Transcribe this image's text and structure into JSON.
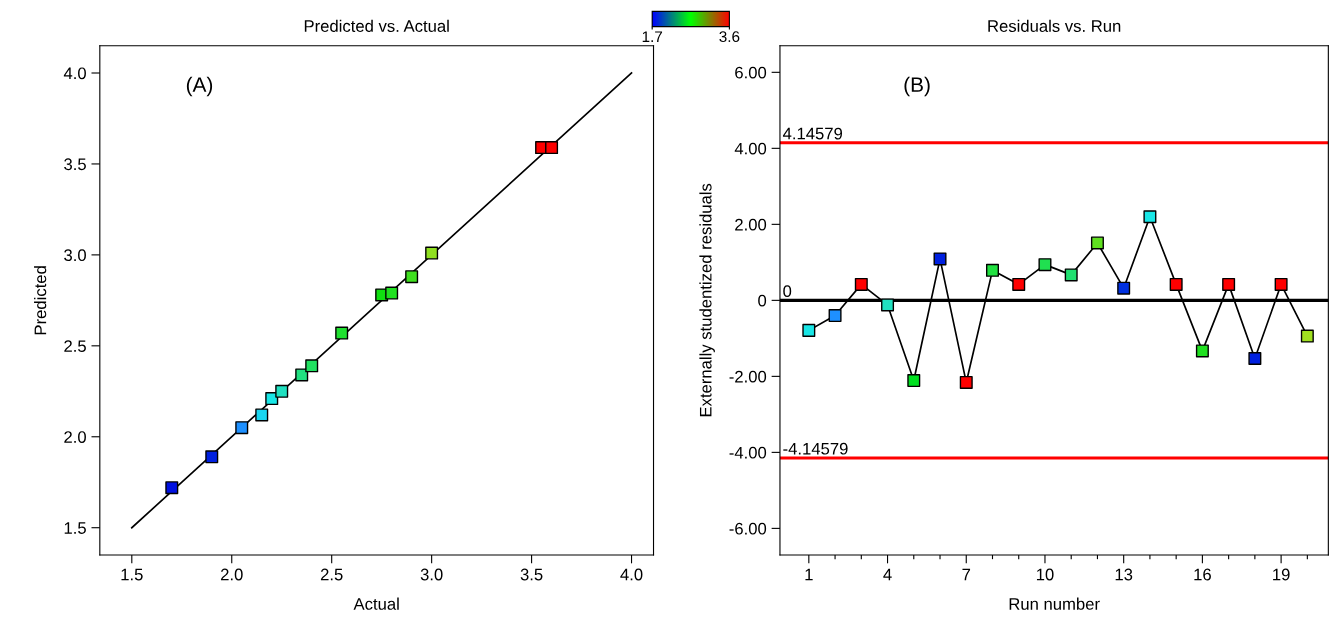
{
  "chart_data": [
    {
      "type": "scatter",
      "title": "Predicted vs. Actual",
      "xlabel": "Actual",
      "ylabel": "Predicted",
      "annotations": [
        "(A)"
      ],
      "x": [
        1.7,
        1.9,
        2.05,
        2.15,
        2.2,
        2.25,
        2.35,
        2.4,
        2.55,
        2.75,
        2.8,
        2.9,
        3.0,
        3.55,
        3.6
      ],
      "series": [
        {
          "type": "scatter",
          "values": [
            1.72,
            1.89,
            2.05,
            2.12,
            2.21,
            2.25,
            2.34,
            2.39,
            2.57,
            2.78,
            2.79,
            2.88,
            3.01,
            3.59,
            3.59
          ],
          "colors": [
            "#0010e0",
            "#0020e0",
            "#1e90ff",
            "#19d6f0",
            "#19e6e6",
            "#20e0c0",
            "#20e080",
            "#20e060",
            "#20e030",
            "#10e010",
            "#20e020",
            "#40e020",
            "#90e020",
            "#ff0000",
            "#ff0000"
          ]
        },
        {
          "type": "line",
          "x": [
            1.5,
            4.0
          ],
          "values": [
            1.5,
            4.0
          ],
          "color": "#000000",
          "marker": "none"
        }
      ],
      "clim": [
        1.7,
        3.6
      ],
      "cticks": [
        1.7,
        3.6
      ],
      "xlim": [
        1.34,
        4.11
      ],
      "ylim": [
        1.35,
        4.15
      ],
      "xticks": [
        1.5,
        {
          "value": 2,
          "label": "2.0"
        },
        2.5,
        {
          "value": 3,
          "label": "3.0"
        },
        3.5,
        {
          "value": 4,
          "label": "4.0"
        }
      ],
      "yticks": [
        1.5,
        {
          "value": 2,
          "label": "2.0"
        },
        2.5,
        {
          "value": 3,
          "label": "3.0"
        },
        3.5,
        {
          "value": 4,
          "label": "4.0"
        }
      ],
      "marker": "square",
      "grid": false,
      "legend": false
    },
    {
      "type": "line",
      "title": "Residuals vs. Run",
      "xlabel": "Run number",
      "ylabel": "Externally studentized residuals",
      "annotations": [
        "(B)"
      ],
      "x": [
        1,
        2,
        3,
        4,
        5,
        6,
        7,
        8,
        9,
        10,
        11,
        12,
        13,
        14,
        15,
        16,
        17,
        18,
        19,
        20
      ],
      "series": [
        {
          "color": "#000000",
          "values": [
            -0.79,
            -0.4,
            0.42,
            -0.12,
            -2.11,
            1.09,
            -2.16,
            0.79,
            0.42,
            0.94,
            0.67,
            1.51,
            0.32,
            2.2,
            0.42,
            -1.33,
            0.42,
            -1.53,
            0.42,
            -0.94
          ],
          "colors": [
            "#19e6e6",
            "#1e90ff",
            "#ff0000",
            "#20e0c0",
            "#00e020",
            "#0020e0",
            "#ff0000",
            "#20e040",
            "#ff0000",
            "#20e050",
            "#20e070",
            "#60e020",
            "#0030e0",
            "#19e6e6",
            "#ff0000",
            "#20e020",
            "#ff0000",
            "#0020e0",
            "#ff0000",
            "#a0e020"
          ]
        }
      ],
      "ref_lines": [
        {
          "axis": "y",
          "value": 4.14579,
          "label": "4.14579",
          "color": "#ff0000"
        },
        {
          "axis": "y",
          "value": 0,
          "label": "0",
          "color": "#000000"
        },
        {
          "axis": "y",
          "value": -4.14579,
          "label": "-4.14579",
          "color": "#ff0000"
        }
      ],
      "xlim": [
        -0.1,
        20.8
      ],
      "ylim": [
        -6.7,
        6.7
      ],
      "xticks": [
        1,
        {
          "value": 2,
          "label": null
        },
        {
          "value": 3,
          "label": null
        },
        4,
        {
          "value": 5,
          "label": null
        },
        {
          "value": 6,
          "label": null
        },
        7,
        {
          "value": 8,
          "label": null
        },
        {
          "value": 9,
          "label": null
        },
        10,
        {
          "value": 11,
          "label": null
        },
        {
          "value": 12,
          "label": null
        },
        13,
        {
          "value": 14,
          "label": null
        },
        {
          "value": 15,
          "label": null
        },
        16,
        {
          "value": 17,
          "label": null
        },
        {
          "value": 18,
          "label": null
        },
        19,
        {
          "value": 20,
          "label": null
        }
      ],
      "yticks": [
        {
          "value": -6,
          "label": "-6.00"
        },
        {
          "value": -4,
          "label": "-4.00"
        },
        {
          "value": -2,
          "label": "-2.00"
        },
        0,
        {
          "value": 2,
          "label": "2.00"
        },
        {
          "value": 4,
          "label": "4.00"
        },
        {
          "value": 6,
          "label": "6.00"
        }
      ],
      "marker": "square",
      "grid": false,
      "legend": false
    }
  ]
}
